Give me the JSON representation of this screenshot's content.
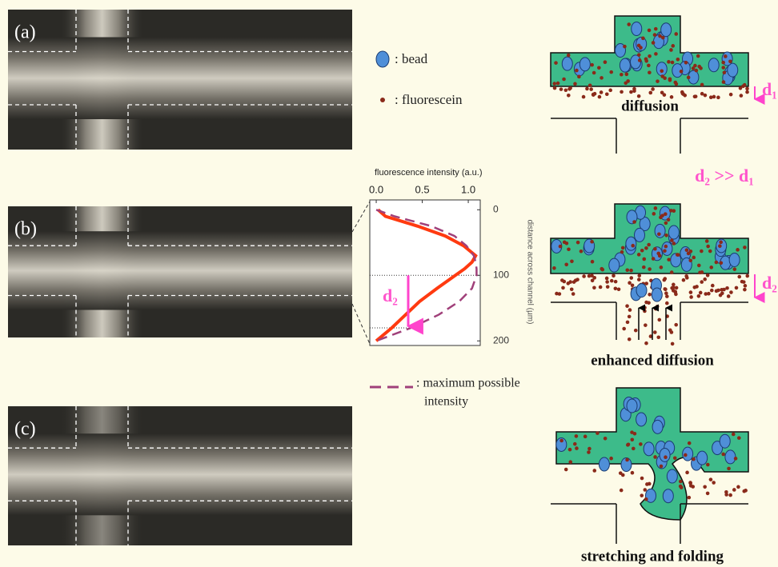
{
  "panels": [
    {
      "label": "(a)"
    },
    {
      "label": "(b)"
    },
    {
      "label": "(c)"
    }
  ],
  "legend": {
    "bead": ": bead",
    "fluorescein": ": fluorescein",
    "max_intensity": [
      ": maximum possible",
      "intensity"
    ]
  },
  "annotation": {
    "d2": "d₂",
    "compare": "d₂ >> d₁",
    "d1_right": "d₁",
    "d2_right": "d₂"
  },
  "schematics": [
    {
      "label": "diffusion"
    },
    {
      "label": "enhanced diffusion"
    },
    {
      "label": "stretching and folding"
    }
  ],
  "chart_data": {
    "type": "line",
    "x_label": "fluorescence intensity (a.u.)",
    "y_label": "distance across channel (µm)",
    "xlim": [
      -0.07,
      1.13
    ],
    "xticks": [
      {
        "value": 0,
        "label": "0.0"
      },
      {
        "value": 0.5,
        "label": "0.5"
      },
      {
        "value": 1,
        "label": "1.0"
      }
    ],
    "ylim": [
      -15,
      207
    ],
    "yticks": [
      0,
      100,
      200
    ],
    "inverted_y": true,
    "x": [
      0,
      10,
      25,
      40,
      55,
      70,
      80,
      90,
      100,
      120,
      140,
      160,
      180,
      200
    ],
    "series": [
      {
        "color": "#ff3a10",
        "dash": false,
        "values": [
          0.02,
          0.1,
          0.45,
          0.75,
          0.95,
          1.08,
          1.04,
          0.96,
          0.86,
          0.66,
          0.47,
          0.32,
          0.17,
          0.0
        ]
      },
      {
        "color": "#a0407a",
        "dash": true,
        "values": [
          0.0,
          0.2,
          0.6,
          0.85,
          0.98,
          1.06,
          1.08,
          1.09,
          1.09,
          1.04,
          0.9,
          0.68,
          0.38,
          0.0
        ]
      }
    ]
  }
}
